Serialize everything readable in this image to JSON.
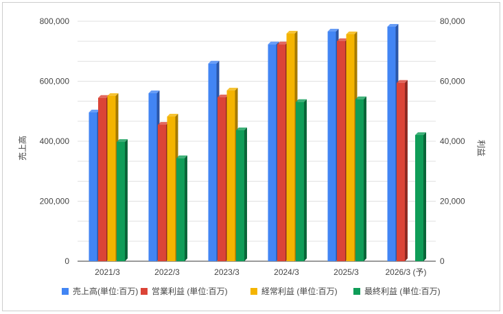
{
  "chart_data": {
    "type": "bar",
    "categories": [
      "2021/3",
      "2022/3",
      "2023/3",
      "2024/3",
      "2025/3",
      "2026/3 (予)"
    ],
    "series": [
      {
        "name": "売上高(単位:百万)",
        "axis": "left",
        "color": "#4285f4",
        "side": "#2a56a8",
        "values": [
          496000,
          560000,
          659000,
          723000,
          765700,
          781700
        ]
      },
      {
        "name": "営業利益 (単位:百万)",
        "axis": "right",
        "color": "#db4437",
        "side": "#8f2a22",
        "values": [
          54470,
          45490,
          54630,
          72300,
          73370,
          59500
        ]
      },
      {
        "name": "経常利益 (単位:百万)",
        "axis": "right",
        "color": "#f4b400",
        "side": "#a67a00",
        "values": [
          55090,
          48230,
          56910,
          75890,
          75660,
          null
        ]
      },
      {
        "name": "最終利益 (単位:百万)",
        "axis": "right",
        "color": "#0f9d58",
        "side": "#0a6539",
        "values": [
          39770,
          34350,
          43660,
          53100,
          54010,
          42060
        ]
      }
    ],
    "ylabel": "売上高",
    "y2label": "利益",
    "ylim": [
      0,
      800000
    ],
    "y2lim": [
      0,
      80000
    ],
    "yticks": [
      "0",
      "200,000",
      "400,000",
      "600,000",
      "800,000"
    ],
    "y2ticks": [
      "0",
      "20,000",
      "40,000",
      "60,000",
      "80,000"
    ],
    "grid": true,
    "legend": "bottom"
  }
}
